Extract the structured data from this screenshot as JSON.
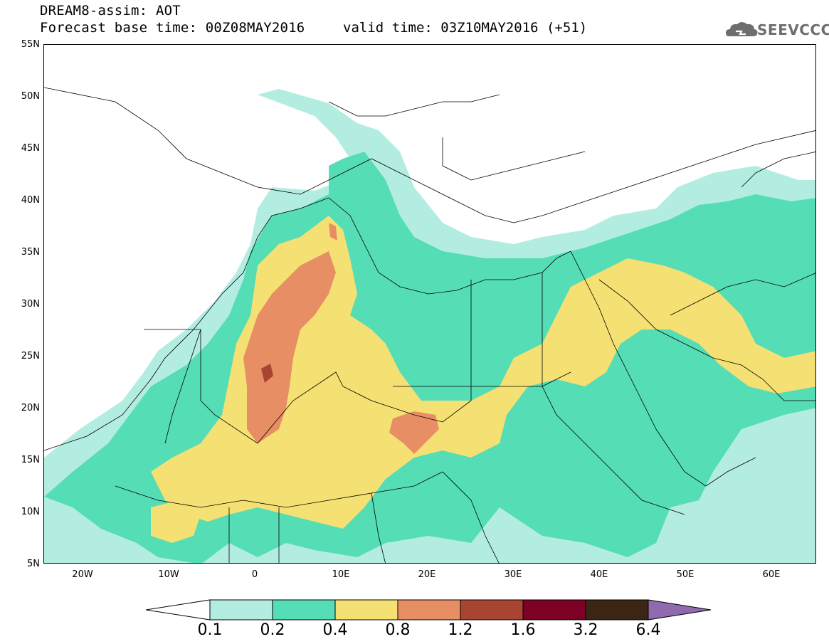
{
  "title": {
    "line1": "DREAM8-assim: AOT",
    "line2": "Forecast base time: 00Z08MAY2016",
    "valid": "valid time: 03Z10MAY2016 (+51)"
  },
  "logo": {
    "text": "SEEVCCC",
    "icon": "cloud-icon"
  },
  "axes": {
    "lat_labels": [
      "55N",
      "50N",
      "45N",
      "40N",
      "35N",
      "30N",
      "25N",
      "20N",
      "15N",
      "10N",
      "5N"
    ],
    "lon_labels": [
      "20W",
      "10W",
      "0",
      "10E",
      "20E",
      "30E",
      "40E",
      "50E",
      "60E"
    ],
    "lat_range": [
      5,
      55
    ],
    "lon_range": [
      -25,
      65
    ]
  },
  "colorbar": {
    "labels": [
      "0.1",
      "0.2",
      "0.4",
      "0.8",
      "1.2",
      "1.6",
      "3.2",
      "6.4"
    ],
    "colors": [
      "#b3ede2",
      "#55ddb5",
      "#f5e173",
      "#e88e64",
      "#a84532",
      "#7d0025",
      "#3b2615",
      "#8f6aaf"
    ]
  }
}
